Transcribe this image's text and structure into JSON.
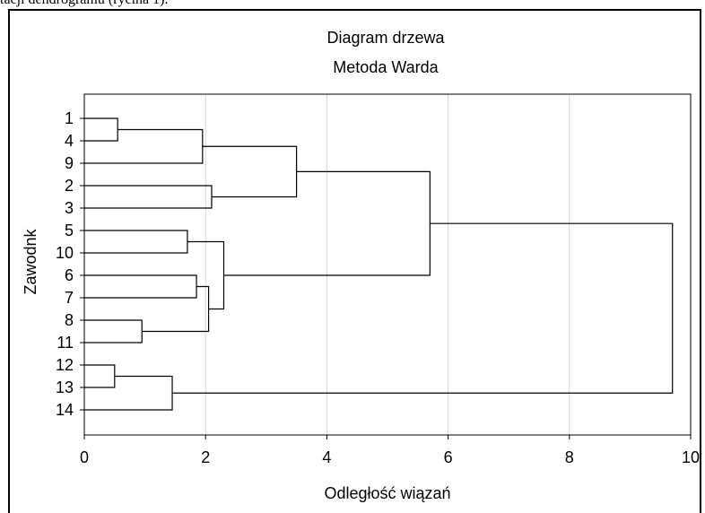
{
  "caption": "tacji dendrogramu (rycina 1).",
  "chart_data": {
    "type": "dendrogram",
    "title": "Diagram drzewa",
    "subtitle": "Metoda Warda",
    "xlabel": "Odległość wiązań",
    "ylabel": "Zawodnk",
    "xlim": [
      0,
      10
    ],
    "xticks": [
      0,
      2,
      4,
      6,
      8,
      10
    ],
    "grid": true,
    "leaves": [
      "1",
      "4",
      "9",
      "2",
      "3",
      "5",
      "10",
      "6",
      "7",
      "8",
      "11",
      "12",
      "13",
      "14"
    ],
    "merges": [
      {
        "id": "A",
        "left": "1",
        "right": "4",
        "height": 0.55
      },
      {
        "id": "B",
        "left": "A",
        "right": "9",
        "height": 1.95
      },
      {
        "id": "C",
        "left": "2",
        "right": "3",
        "height": 2.1
      },
      {
        "id": "D",
        "left": "B",
        "right": "C",
        "height": 3.5
      },
      {
        "id": "E",
        "left": "5",
        "right": "10",
        "height": 1.7
      },
      {
        "id": "F",
        "left": "6",
        "right": "7",
        "height": 1.85
      },
      {
        "id": "G",
        "left": "8",
        "right": "11",
        "height": 0.95
      },
      {
        "id": "H",
        "left": "F",
        "right": "G",
        "height": 2.05
      },
      {
        "id": "I",
        "left": "E",
        "right": "H",
        "height": 2.3
      },
      {
        "id": "J",
        "left": "D",
        "right": "I",
        "height": 5.7
      },
      {
        "id": "K",
        "left": "12",
        "right": "13",
        "height": 0.5
      },
      {
        "id": "L",
        "left": "K",
        "right": "14",
        "height": 1.45
      },
      {
        "id": "M",
        "left": "J",
        "right": "L",
        "height": 9.7
      }
    ]
  }
}
